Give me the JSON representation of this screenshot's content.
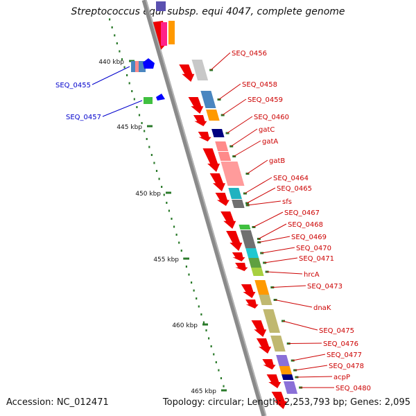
{
  "title": "Streptococcus equi subsp. equi 4047, complete genome",
  "footer": {
    "accession": "Accession: NC_012471",
    "summary": "Topology: circular; Length: 2,253,793 bp; Genes: 2,095"
  },
  "colors": {
    "backbone": "#8a8a8a",
    "forward_label": "#cc0000",
    "reverse_label": "#0000cc",
    "tick": "#2a7a2a",
    "cds": "#ee0000"
  },
  "scale_ticks": [
    {
      "label": "440 kbp"
    },
    {
      "label": "445 kbp"
    },
    {
      "label": "450 kbp"
    },
    {
      "label": "455 kbp"
    },
    {
      "label": "460 kbp"
    },
    {
      "label": "465 kbp"
    }
  ],
  "forward_features": [
    {
      "label": "SEQ_0456",
      "color": "#c8c8c8"
    },
    {
      "label": "SEQ_0458",
      "color": "#4a86c0"
    },
    {
      "label": "SEQ_0459",
      "color": "#ff9900"
    },
    {
      "label": "SEQ_0460",
      "color": "#000080"
    },
    {
      "label": "gatC",
      "color": "#ff8a8a"
    },
    {
      "label": "gatA",
      "color": "#ff8a8a"
    },
    {
      "label": "gatB",
      "color": "#ff8a8a"
    },
    {
      "label": "SEQ_0464",
      "color": "#20b2c0"
    },
    {
      "label": "SEQ_0465",
      "color": "#707070"
    },
    {
      "label": "sfs",
      "color": "#707070"
    },
    {
      "label": "SEQ_0467",
      "color": "#40c040"
    },
    {
      "label": "SEQ_0468",
      "color": "#707070"
    },
    {
      "label": "SEQ_0469",
      "color": "#707070"
    },
    {
      "label": "SEQ_0470",
      "color": "#20c8d0"
    },
    {
      "label": "SEQ_0471",
      "color": "#60a040"
    },
    {
      "label": "hrcA",
      "color": "#a8d040"
    },
    {
      "label": "SEQ_0473",
      "color": "#ff9900"
    },
    {
      "label": "dnaK",
      "color": "#c0b870"
    },
    {
      "label": "SEQ_0475",
      "color": "#c0b870"
    },
    {
      "label": "SEQ_0476",
      "color": "#c0b870"
    },
    {
      "label": "SEQ_0477",
      "color": "#8a70d8"
    },
    {
      "label": "SEQ_0478",
      "color": "#ff9900"
    },
    {
      "label": "acpP",
      "color": "#000080"
    },
    {
      "label": "SEQ_0480",
      "color": "#8a70d8"
    }
  ],
  "reverse_features": [
    {
      "label": "SEQ_0455",
      "color": "#4a86c0"
    },
    {
      "label": "SEQ_0457",
      "color": "#40c040"
    }
  ]
}
